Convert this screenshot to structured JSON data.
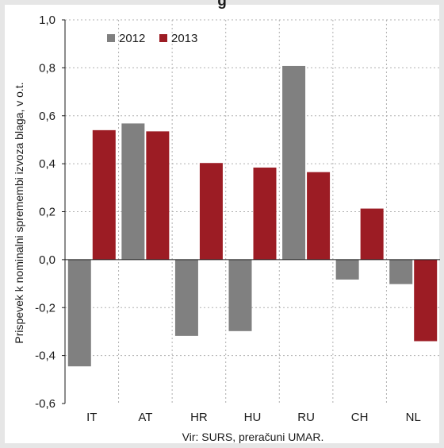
{
  "chart_data": {
    "type": "bar",
    "title": "g",
    "categories": [
      "IT",
      "AT",
      "HR",
      "HU",
      "RU",
      "CH",
      "NL"
    ],
    "series": [
      {
        "name": "2012",
        "values": [
          -0.445,
          0.568,
          -0.318,
          -0.298,
          0.808,
          -0.083,
          -0.102
        ]
      },
      {
        "name": "2013",
        "values": [
          0.54,
          0.535,
          0.403,
          0.384,
          0.365,
          0.213,
          -0.34
        ]
      }
    ],
    "xlabel": "",
    "ylabel": "Prispevek k nominalni spremembi izvoza blaga, v o.t.",
    "ylim": [
      -0.6,
      1.0
    ],
    "yticks": [
      "1,0",
      "0,8",
      "0,6",
      "0,4",
      "0,2",
      "0,0",
      "-0,2",
      "-0,4",
      "-0,6"
    ],
    "grid": true,
    "legend_position": "top-left",
    "colors": {
      "2012": "#808080",
      "2013": "#9c1c24"
    },
    "source_note": "Vir: SURS, preračuni UMAR."
  }
}
